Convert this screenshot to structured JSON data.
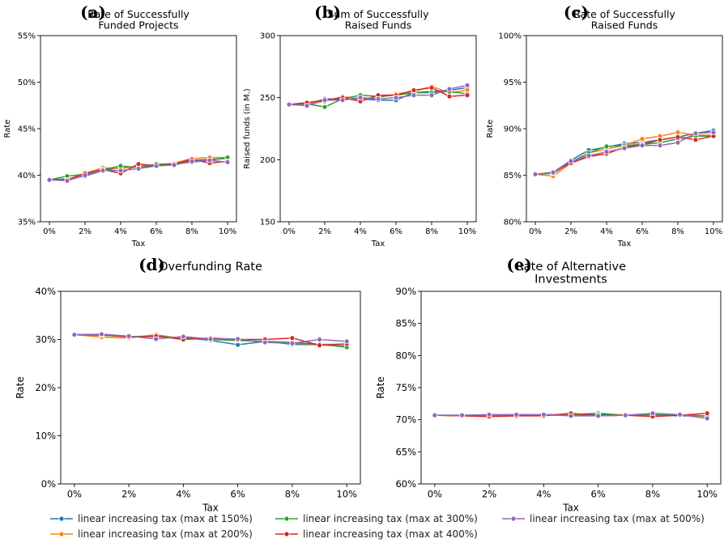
{
  "x_ticks": [
    "0%",
    "2%",
    "4%",
    "6%",
    "8%",
    "10%"
  ],
  "x_values": [
    0,
    1,
    2,
    3,
    4,
    5,
    6,
    7,
    8,
    9,
    10
  ],
  "series_meta": [
    {
      "name": "linear increasing tax (max at 150%)",
      "color": "#1f77b4"
    },
    {
      "name": "linear increasing tax (max at 200%)",
      "color": "#ff7f0e"
    },
    {
      "name": "linear increasing tax (max at 300%)",
      "color": "#2ca02c"
    },
    {
      "name": "linear increasing tax (max at 400%)",
      "color": "#d62728"
    },
    {
      "name": "linear increasing tax (max at 500%)",
      "color": "#9467bd"
    }
  ],
  "chart_data": [
    {
      "type": "line",
      "letter": "(a)",
      "title_lines": [
        "Rate of Successfully",
        "Funded Projects"
      ],
      "xlabel": "Tax",
      "ylabel": "Rate",
      "ylim": [
        35,
        55
      ],
      "yticks": [
        35,
        40,
        45,
        50,
        55
      ],
      "ytick_labels": [
        "35%",
        "40%",
        "45%",
        "50%",
        "55%"
      ],
      "series": [
        {
          "values": [
            39.5,
            39.6,
            39.9,
            40.5,
            40.8,
            40.9,
            41.0,
            41.2,
            41.6,
            41.7,
            41.8
          ]
        },
        {
          "values": [
            39.5,
            39.5,
            40.2,
            40.8,
            40.7,
            41.0,
            41.1,
            41.3,
            41.8,
            41.9,
            41.9
          ]
        },
        {
          "values": [
            39.5,
            39.9,
            40.1,
            40.6,
            41.0,
            40.8,
            41.2,
            41.2,
            41.4,
            41.6,
            41.9
          ]
        },
        {
          "values": [
            39.5,
            39.5,
            40.2,
            40.6,
            40.2,
            41.2,
            41.0,
            41.2,
            41.7,
            41.3,
            41.5
          ]
        },
        {
          "values": [
            39.5,
            39.4,
            40.0,
            40.5,
            40.5,
            40.7,
            41.0,
            41.1,
            41.5,
            41.6,
            41.4
          ]
        }
      ]
    },
    {
      "type": "line",
      "letter": "(b)",
      "title_lines": [
        "Sum of Successfully",
        "Raised Funds"
      ],
      "xlabel": "Tax",
      "ylabel": "Raised funds (in M.)",
      "ylim": [
        150,
        300
      ],
      "yticks": [
        150,
        200,
        250,
        300
      ],
      "ytick_labels": [
        "150",
        "200",
        "250",
        "300"
      ],
      "series": [
        {
          "values": [
            244.5,
            244.5,
            249,
            249,
            249,
            248,
            248,
            254,
            255,
            256,
            258
          ]
        },
        {
          "values": [
            244.5,
            245,
            247,
            251,
            249,
            250,
            253,
            255,
            259,
            254,
            256
          ]
        },
        {
          "values": [
            244.5,
            245,
            242.5,
            249,
            252,
            251,
            252,
            254,
            254,
            255,
            253
          ]
        },
        {
          "values": [
            244.5,
            246,
            248,
            250,
            247,
            252,
            252,
            256,
            258,
            251,
            252
          ]
        },
        {
          "values": [
            244.5,
            243.5,
            248,
            248,
            250,
            249,
            250,
            252,
            252,
            257,
            260
          ]
        }
      ]
    },
    {
      "type": "line",
      "letter": "(c)",
      "title_lines": [
        "Rate of Successfully",
        "Raised Funds"
      ],
      "xlabel": "Tax",
      "ylabel": "Rate",
      "ylim": [
        80,
        100
      ],
      "yticks": [
        80,
        85,
        90,
        95,
        100
      ],
      "ytick_labels": [
        "80%",
        "85%",
        "90%",
        "95%",
        "100%"
      ],
      "series": [
        {
          "values": [
            85.1,
            85.3,
            86.6,
            87.7,
            88.0,
            88.4,
            88.5,
            88.8,
            89.1,
            89.5,
            89.8
          ]
        },
        {
          "values": [
            85.1,
            84.9,
            86.3,
            87.4,
            87.8,
            88.2,
            88.9,
            89.2,
            89.6,
            89.3,
            89.3
          ]
        },
        {
          "values": [
            85.1,
            85.2,
            86.4,
            87.4,
            88.1,
            88.2,
            88.3,
            88.5,
            88.9,
            89.2,
            89.2
          ]
        },
        {
          "values": [
            85.1,
            85.3,
            86.3,
            87.0,
            87.3,
            88.0,
            88.3,
            88.8,
            89.1,
            88.8,
            89.2
          ]
        },
        {
          "values": [
            85.1,
            85.3,
            86.5,
            87.1,
            87.5,
            87.9,
            88.2,
            88.2,
            88.5,
            89.5,
            89.6
          ]
        }
      ]
    },
    {
      "type": "line",
      "letter": "(d)",
      "title_lines": [
        "Overfunding Rate"
      ],
      "xlabel": "Tax",
      "ylabel": "Rate",
      "ylim": [
        0,
        40
      ],
      "yticks": [
        0,
        10,
        20,
        30,
        40
      ],
      "ytick_labels": [
        "0%",
        "10%",
        "20%",
        "30%",
        "40%"
      ],
      "series": [
        {
          "values": [
            31.0,
            30.9,
            30.6,
            30.6,
            30.4,
            29.8,
            28.9,
            29.6,
            29.0,
            28.9,
            28.6
          ]
        },
        {
          "values": [
            31.0,
            30.5,
            30.3,
            31.0,
            30.1,
            30.1,
            29.9,
            29.5,
            29.2,
            29.0,
            29.0
          ]
        },
        {
          "values": [
            31.0,
            30.9,
            30.6,
            30.7,
            30.3,
            30.0,
            29.8,
            29.6,
            29.4,
            29.0,
            28.4
          ]
        },
        {
          "values": [
            31.0,
            31.0,
            30.5,
            30.7,
            30.0,
            30.3,
            30.0,
            30.0,
            30.3,
            28.8,
            29.1
          ]
        },
        {
          "values": [
            31.0,
            31.1,
            30.7,
            30.1,
            30.6,
            30.1,
            30.1,
            29.4,
            29.2,
            30.0,
            29.6
          ]
        }
      ]
    },
    {
      "type": "line",
      "letter": "(e)",
      "title_lines": [
        "Rate of Alternative",
        "Investments"
      ],
      "xlabel": "Tax",
      "ylabel": "Rate",
      "ylim": [
        60,
        90
      ],
      "yticks": [
        60,
        65,
        70,
        75,
        80,
        85,
        90
      ],
      "ytick_labels": [
        "60%",
        "65%",
        "70%",
        "75%",
        "80%",
        "85%",
        "90%"
      ],
      "series": [
        {
          "values": [
            70.7,
            70.6,
            70.8,
            70.7,
            70.8,
            70.8,
            71.0,
            70.7,
            70.7,
            70.6,
            70.6
          ]
        },
        {
          "values": [
            70.7,
            70.6,
            70.7,
            70.7,
            70.8,
            70.8,
            70.7,
            70.8,
            70.6,
            70.8,
            70.5
          ]
        },
        {
          "values": [
            70.7,
            70.7,
            70.7,
            70.8,
            70.7,
            70.7,
            70.8,
            70.7,
            70.8,
            70.7,
            70.6
          ]
        },
        {
          "values": [
            70.7,
            70.6,
            70.5,
            70.6,
            70.6,
            71.0,
            70.6,
            70.7,
            70.5,
            70.7,
            71.0
          ]
        },
        {
          "values": [
            70.7,
            70.7,
            70.8,
            70.8,
            70.8,
            70.6,
            70.6,
            70.7,
            71.0,
            70.8,
            70.2
          ]
        }
      ]
    }
  ]
}
